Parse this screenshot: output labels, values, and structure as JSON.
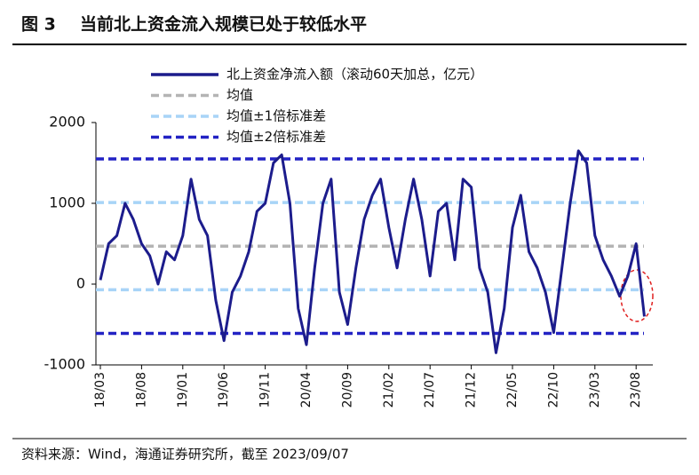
{
  "figure_label": "图 3",
  "chart_data": {
    "type": "line",
    "title": "当前北上资金流入规模已处于较低水平",
    "categories": [
      "18/03",
      null,
      null,
      null,
      null,
      "18/08",
      null,
      null,
      null,
      null,
      "19/01",
      null,
      null,
      null,
      null,
      "19/06",
      null,
      null,
      null,
      null,
      "19/11",
      null,
      null,
      null,
      null,
      "20/04",
      null,
      null,
      null,
      null,
      "20/09",
      null,
      null,
      null,
      null,
      "21/02",
      null,
      null,
      null,
      null,
      "21/07",
      null,
      null,
      null,
      null,
      "21/12",
      null,
      null,
      null,
      null,
      "22/05",
      null,
      null,
      null,
      null,
      "22/10",
      null,
      null,
      null,
      null,
      "23/03",
      null,
      null,
      null,
      null,
      "23/08",
      null
    ],
    "series": [
      {
        "name": "北上资金净流入额（滚动60天加总，亿元）",
        "color": "#1c1c8c",
        "values": [
          50,
          500,
          600,
          1000,
          800,
          500,
          350,
          0,
          400,
          300,
          600,
          1300,
          800,
          600,
          -200,
          -700,
          -100,
          100,
          400,
          900,
          1000,
          1500,
          1600,
          1000,
          -300,
          -750,
          200,
          1000,
          1300,
          -100,
          -500,
          200,
          800,
          1100,
          1300,
          700,
          200,
          800,
          1300,
          800,
          100,
          900,
          1000,
          300,
          1300,
          1200,
          200,
          -100,
          -850,
          -300,
          700,
          1100,
          400,
          200,
          -100,
          -600,
          200,
          1000,
          1650,
          1500,
          600,
          300,
          100,
          -150,
          100,
          500,
          -400
        ]
      }
    ],
    "reference_lines": [
      {
        "name": "均值",
        "value": 470,
        "color": "#b4b4b4"
      },
      {
        "name": "均值±1倍标准差",
        "value": 1010,
        "color": "#a8d4f7"
      },
      {
        "name": "均值±1倍标准差",
        "value": -70,
        "color": "#a8d4f7"
      },
      {
        "name": "均值±2倍标准差",
        "value": 1550,
        "color": "#2222c4"
      },
      {
        "name": "均值±2倍标准差",
        "value": -610,
        "color": "#2222c4"
      }
    ],
    "ylim": [
      -1000,
      2000
    ],
    "yticks": [
      -1000,
      0,
      1000,
      2000
    ]
  },
  "source": "资料来源：Wind，海通证券研究所，截至 2023/09/07"
}
